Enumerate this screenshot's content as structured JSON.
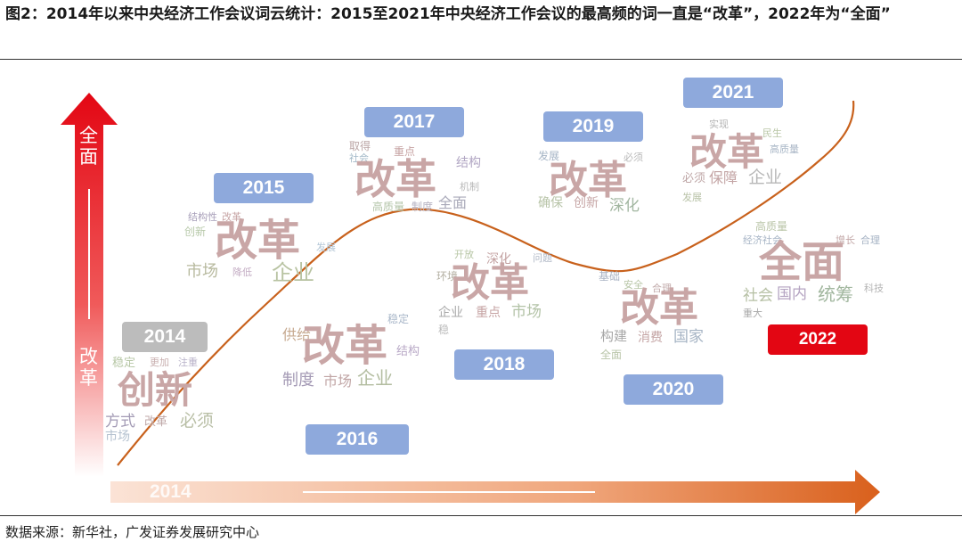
{
  "figure": {
    "title": "图2：2014年以来中央经济工作会议词云统计：2015至2021年中央经济工作会议的最高频的词一直是“改革”，2022年为“全面”",
    "source": "数据来源：新华社，广发证券发展研究中心"
  },
  "vertical_arrow": {
    "top_label": "全面",
    "bottom_label": "改革"
  },
  "horizontal_arrow": {
    "label": "2014"
  },
  "colors": {
    "vertical_red": "#e30613",
    "horizontal_orange": "#d9601c",
    "curve": "#c8611c",
    "year_blue": "#8ea9dc",
    "year_grey": "#bcbcbc",
    "year_red": "#e30613"
  },
  "years": [
    {
      "label": "2014",
      "style": "grey"
    },
    {
      "label": "2015",
      "style": "blue"
    },
    {
      "label": "2016",
      "style": "blue"
    },
    {
      "label": "2017",
      "style": "blue"
    },
    {
      "label": "2018",
      "style": "blue"
    },
    {
      "label": "2019",
      "style": "blue"
    },
    {
      "label": "2020",
      "style": "blue"
    },
    {
      "label": "2021",
      "style": "blue"
    },
    {
      "label": "2022",
      "style": "red"
    }
  ],
  "clouds": {
    "c2014": {
      "big": "创新",
      "words": [
        "市场",
        "方式",
        "改革",
        "必须",
        "更加",
        "注重",
        "稳定"
      ]
    },
    "c2015": {
      "big": "改革",
      "words": [
        "结构性",
        "改革",
        "市场",
        "企业",
        "降低",
        "创新",
        "发展"
      ]
    },
    "c2016": {
      "big": "改革",
      "words": [
        "制度",
        "市场",
        "企业",
        "供给",
        "结构",
        "稳定"
      ]
    },
    "c2017": {
      "big": "改革",
      "words": [
        "取得",
        "社会",
        "重点",
        "结构",
        "机制",
        "全面",
        "制度",
        "高质量"
      ]
    },
    "c2018": {
      "big": "改革",
      "words": [
        "开放",
        "深化",
        "问题",
        "环境",
        "企业",
        "重点",
        "市场",
        "稳"
      ]
    },
    "c2019": {
      "big": "改革",
      "words": [
        "确保",
        "创新",
        "深化",
        "必须",
        "发展"
      ]
    },
    "c2020": {
      "big": "改革",
      "words": [
        "基础",
        "安全",
        "合理",
        "构建",
        "消费",
        "国家",
        "全面"
      ]
    },
    "c2021": {
      "big": "改革",
      "words": [
        "实现",
        "民生",
        "高质量",
        "必须",
        "保障",
        "企业",
        "发展"
      ]
    },
    "c2022": {
      "big": "全面",
      "words": [
        "高质量",
        "经济社会",
        "增长",
        "合理",
        "社会",
        "国内",
        "统筹",
        "科技",
        "重大"
      ]
    }
  }
}
